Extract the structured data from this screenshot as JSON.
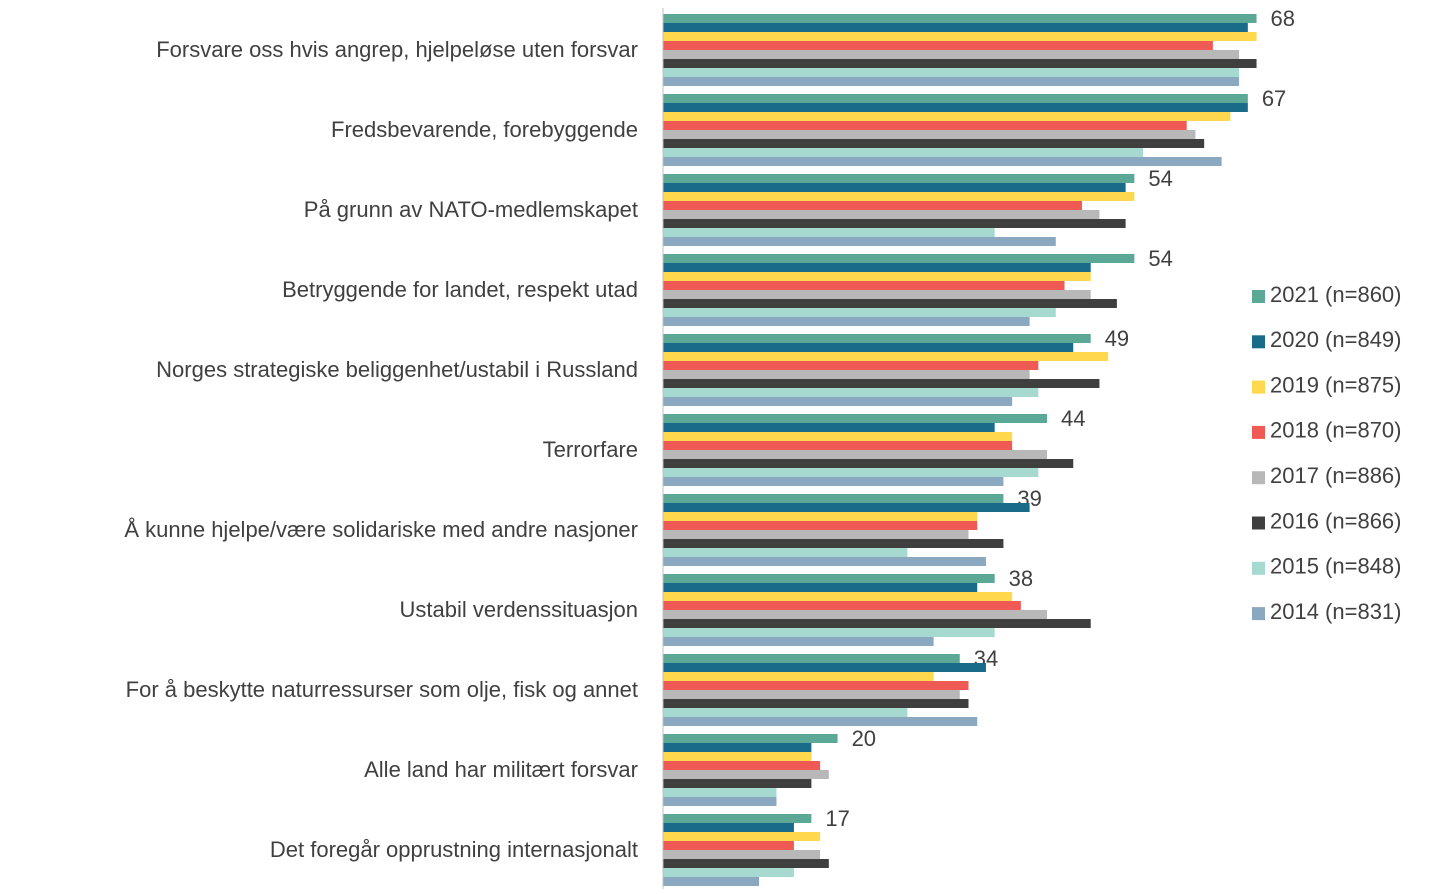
{
  "chart_data": {
    "type": "hbar",
    "categories": [
      "Forsvare oss hvis angrep, hjelpeløse uten forsvar",
      "Fredsbevarende, forebyggende",
      "På grunn av NATO-medlemskapet",
      "Betryggende for landet, respekt utad",
      "Norges strategiske beliggenhet/ustabil i Russland",
      "Terrorfare",
      "Å kunne hjelpe/være solidariske med andre nasjoner",
      "Ustabil verdenssituasjon",
      "For å beskytte naturressurser som olje, fisk og annet",
      "Alle land har militært forsvar",
      "Det foregår opprustning internasjonalt"
    ],
    "series": [
      {
        "name": "2021 (n=860)",
        "color": "#5ba896",
        "values": [
          68,
          67,
          54,
          54,
          49,
          44,
          39,
          38,
          34,
          20,
          17
        ]
      },
      {
        "name": "2020 (n=849)",
        "color": "#1a6b8a",
        "values": [
          67,
          67,
          53,
          49,
          47,
          38,
          42,
          36,
          37,
          17,
          15
        ]
      },
      {
        "name": "2019 (n=875)",
        "color": "#ffd84d",
        "values": [
          68,
          65,
          54,
          49,
          51,
          40,
          36,
          40,
          31,
          17,
          18
        ]
      },
      {
        "name": "2018 (n=870)",
        "color": "#f05a55",
        "values": [
          63,
          60,
          48,
          46,
          43,
          40,
          36,
          41,
          35,
          18,
          15
        ]
      },
      {
        "name": "2017 (n=886)",
        "color": "#b8b8b8",
        "values": [
          66,
          61,
          50,
          49,
          42,
          44,
          35,
          44,
          34,
          19,
          18
        ]
      },
      {
        "name": "2016 (n=866)",
        "color": "#3f3f3f",
        "values": [
          68,
          62,
          53,
          52,
          50,
          47,
          39,
          49,
          35,
          17,
          19
        ]
      },
      {
        "name": "2015 (n=848)",
        "color": "#a6d9d0",
        "values": [
          66,
          55,
          38,
          45,
          43,
          43,
          28,
          38,
          28,
          13,
          15
        ]
      },
      {
        "name": "2014 (n=831)",
        "color": "#8aa9c0",
        "values": [
          66,
          64,
          45,
          42,
          40,
          39,
          37,
          31,
          36,
          13,
          11
        ]
      }
    ],
    "xlim": [
      0,
      70
    ],
    "legend": "right"
  }
}
